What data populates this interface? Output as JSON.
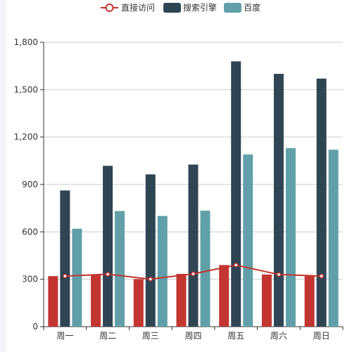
{
  "chart_data": {
    "type": "bar",
    "categories": [
      "周一",
      "周二",
      "周三",
      "周四",
      "周五",
      "周六",
      "周日"
    ],
    "series": [
      {
        "name": "直接访问",
        "kind": "bar",
        "color": "#c23531",
        "values": [
          320,
          332,
          301,
          334,
          390,
          330,
          320
        ]
      },
      {
        "name": "搜索引擎",
        "kind": "bar",
        "color": "#2f4554",
        "values": [
          862,
          1018,
          964,
          1026,
          1679,
          1600,
          1570
        ]
      },
      {
        "name": "百度",
        "kind": "bar",
        "color": "#61a0a8",
        "values": [
          620,
          732,
          701,
          734,
          1090,
          1130,
          1120
        ]
      },
      {
        "name": "直接访问",
        "kind": "line",
        "color": "#c23531",
        "values": [
          320,
          332,
          301,
          334,
          390,
          330,
          320
        ]
      }
    ],
    "legend": {
      "position": "top-center",
      "items": [
        {
          "name": "直接访问",
          "icon": "line-circle-icon",
          "color": "#c23531"
        },
        {
          "name": "搜索引擎",
          "icon": "rounded-rect-icon",
          "color": "#2f4554"
        },
        {
          "name": "百度",
          "icon": "rounded-rect-icon",
          "color": "#61a0a8"
        }
      ]
    },
    "yticks": [
      "0",
      "300",
      "600",
      "900",
      "1,200",
      "1,500",
      "1,800"
    ],
    "ylim": [
      0,
      1800
    ],
    "grid": true,
    "title": "",
    "xlabel": "",
    "ylabel": ""
  }
}
